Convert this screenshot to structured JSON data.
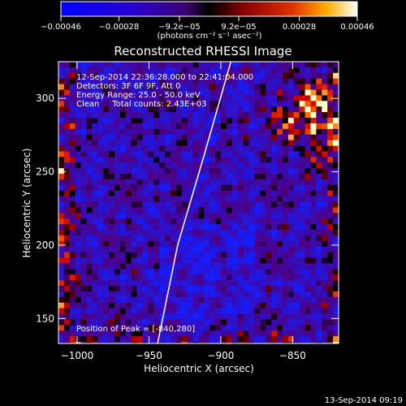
{
  "chart_data": {
    "type": "heatmap",
    "title": "Reconstructed RHESSI Image",
    "xlabel": "Heliocentric X (arcsec)",
    "ylabel": "Heliocentric Y (arcsec)",
    "xlim": [
      -1013,
      -818
    ],
    "ylim": [
      133,
      325
    ],
    "x_ticks": [
      {
        "value": -1000,
        "label": "−1000"
      },
      {
        "value": -950,
        "label": "−950"
      },
      {
        "value": -900,
        "label": "−900"
      },
      {
        "value": -850,
        "label": "−850"
      }
    ],
    "y_ticks": [
      {
        "value": 150,
        "label": "150"
      },
      {
        "value": 200,
        "label": "200"
      },
      {
        "value": 250,
        "label": "250"
      },
      {
        "value": 300,
        "label": "300"
      }
    ],
    "colorbar": {
      "range": [
        -0.00046,
        0.00046
      ],
      "ticks": [
        {
          "value": -0.00046,
          "label": "−0.00046"
        },
        {
          "value": -0.00028,
          "label": "−0.00028"
        },
        {
          "value": -9.2e-05,
          "label": "−9.2e−05"
        },
        {
          "value": 9.2e-05,
          "label": "9.2e−05"
        },
        {
          "value": 0.00028,
          "label": "0.00028"
        },
        {
          "value": 0.00046,
          "label": "0.00046"
        }
      ],
      "unit_label": "(photons cm⁻² s⁻¹ asec⁻²)"
    },
    "annotations": [
      "12-Sep-2014 22:36:28.000 to 22:41:04.000",
      "Detectors: 3F 6F 9F, Att 0",
      "Energy Range: 25.0 - 50.0 keV",
      "Clean     Total counts: 2.43E+03"
    ],
    "peak_label": "Position of Peak = [-840,280]",
    "peak": [
      -840,
      280
    ],
    "limb_line": [
      [
        -944,
        133
      ],
      [
        -930,
        200
      ],
      [
        -912,
        260
      ],
      [
        -893,
        325
      ]
    ],
    "colors": {
      "background": "#000000",
      "negative_max": "#0000ff",
      "zero": "#500080",
      "positive_max": "#ffffff",
      "text": "#ffffff"
    }
  },
  "footer": {
    "timestamp": "13-Sep-2014 09:19"
  }
}
